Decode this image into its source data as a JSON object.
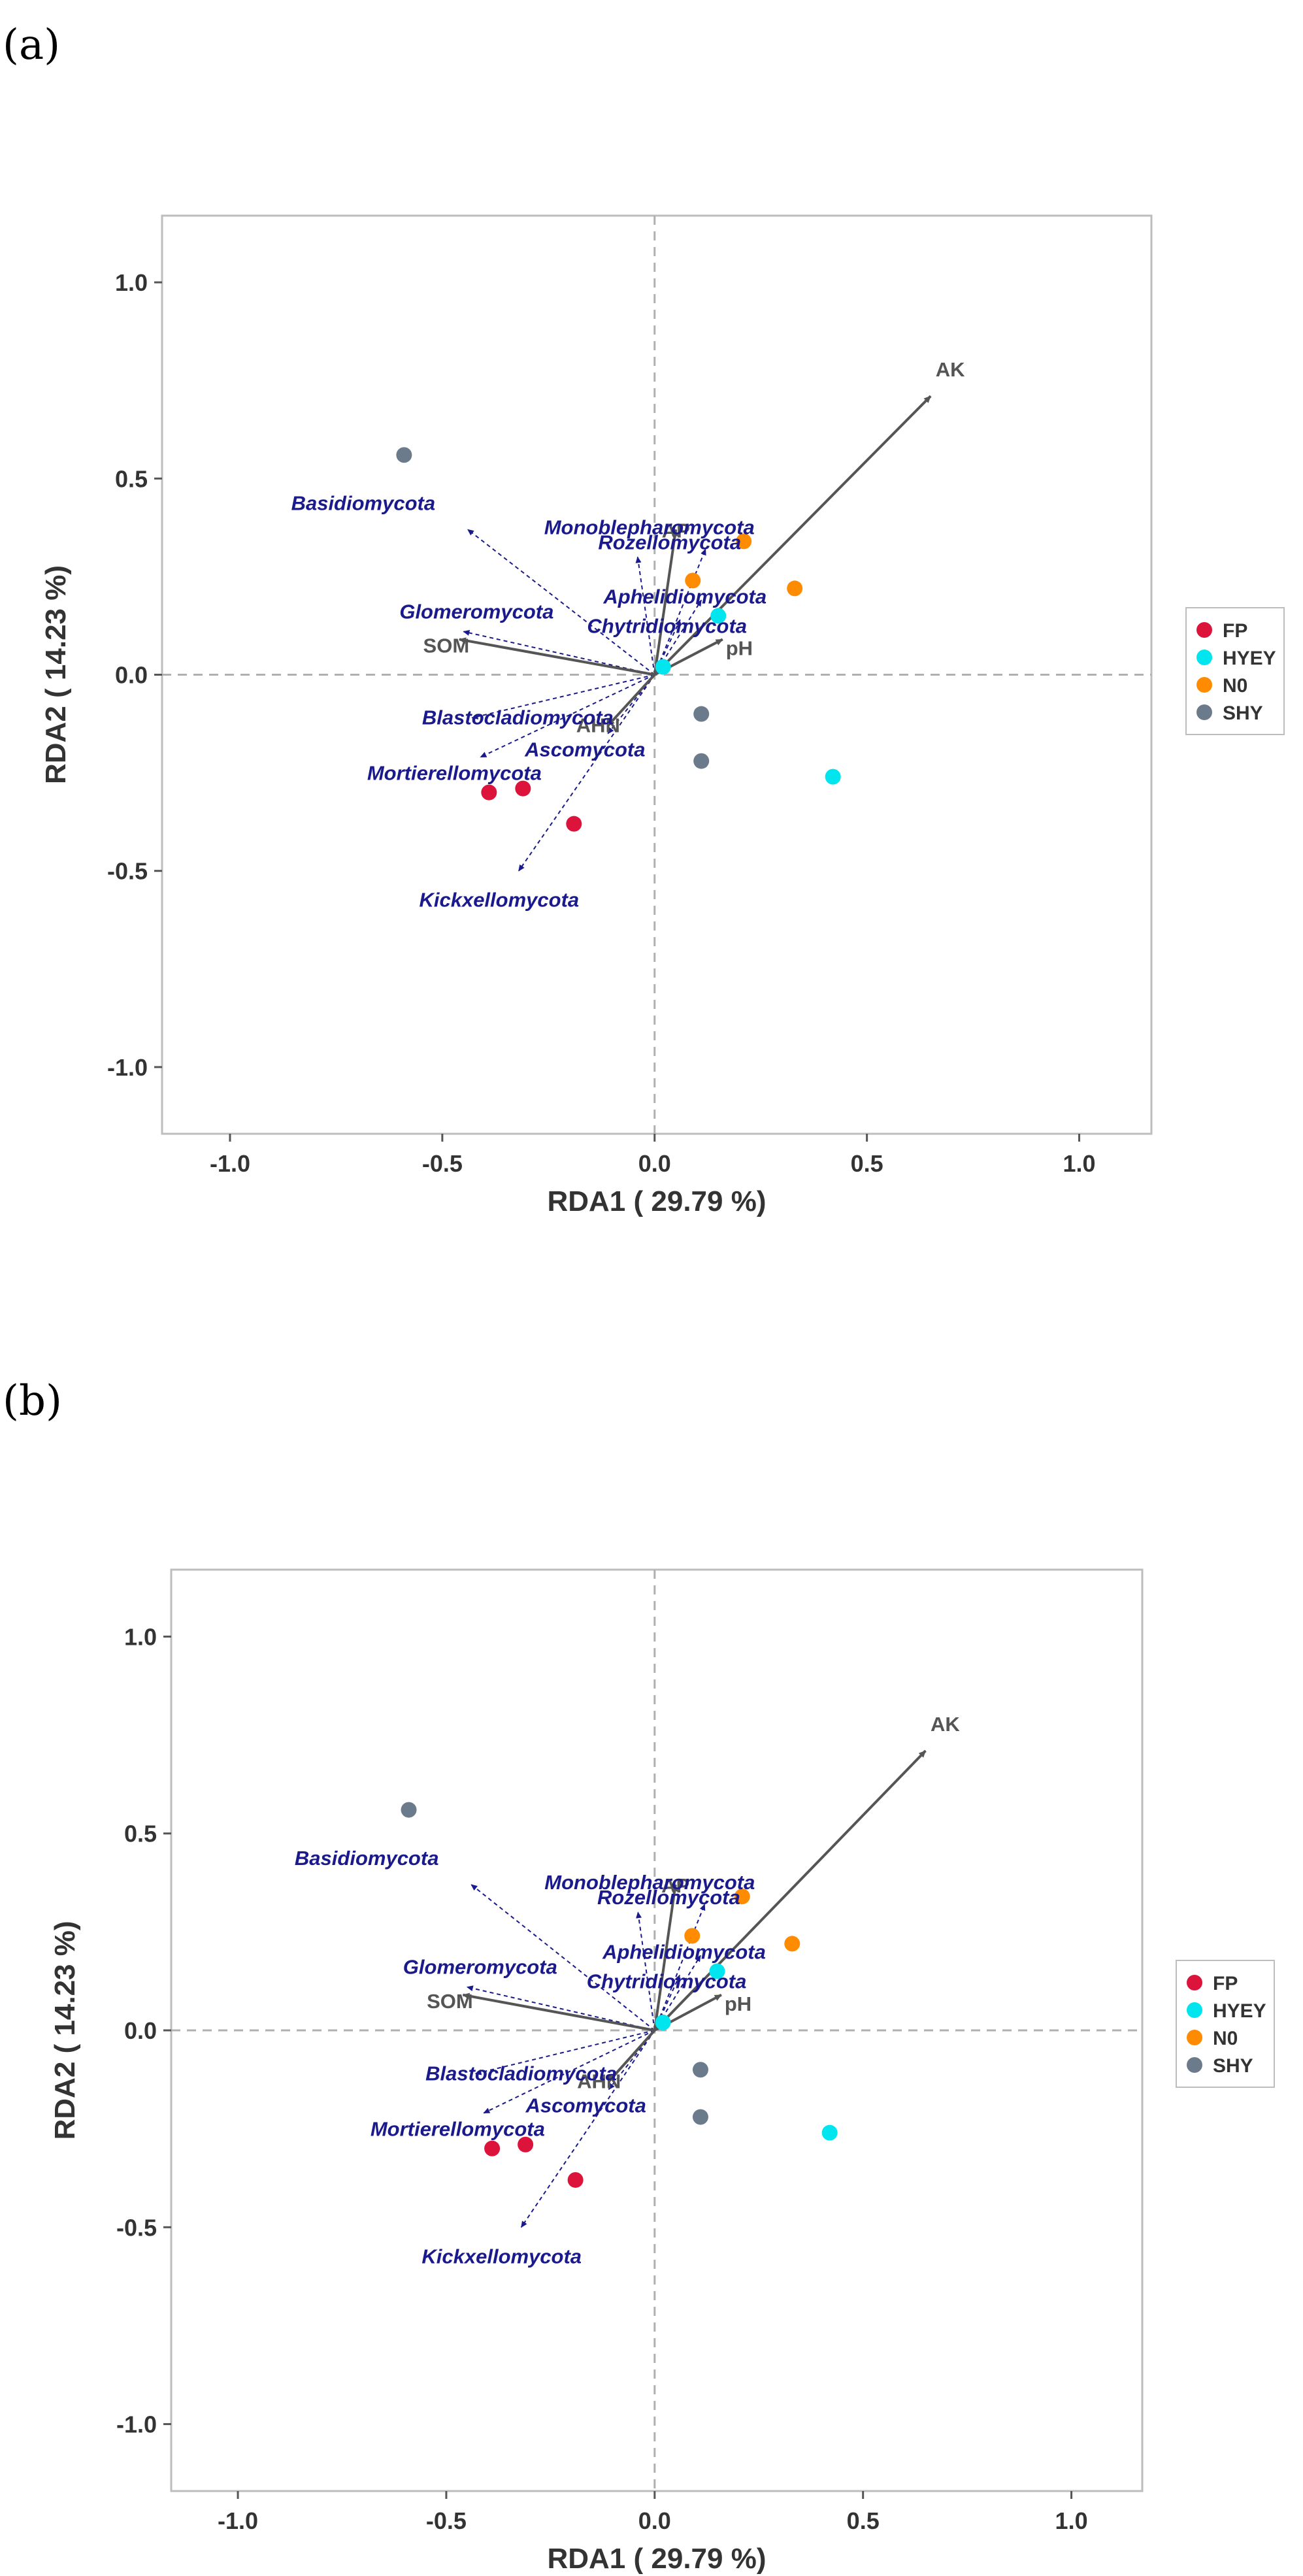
{
  "chart_data": [
    {
      "panel_label": "(a)",
      "type": "scatter",
      "subtype": "RDA biplot",
      "xlabel": "RDA1 ( 29.79 %)",
      "ylabel": "RDA2 ( 14.23 %)",
      "xlim": [
        -1.16,
        1.17
      ],
      "ylim": [
        -1.17,
        1.17
      ],
      "xticks": [
        -1.0,
        -0.5,
        0.0,
        0.5,
        1.0
      ],
      "yticks": [
        -1.0,
        -0.5,
        0.0,
        0.5,
        1.0
      ],
      "xtick_labels": [
        "-1.0",
        "-0.5",
        "0.0",
        "0.5",
        "1.0"
      ],
      "ytick_labels": [
        "-1.0",
        "-0.5",
        "0.0",
        "0.5",
        "1.0"
      ],
      "reference_lines": {
        "x": 0,
        "y": 0,
        "style": "dashed"
      },
      "legend": {
        "placement": "right",
        "entries": [
          {
            "name": "FP",
            "color": "#dc143c"
          },
          {
            "name": "HYEY",
            "color": "#00e5ee"
          },
          {
            "name": "N0",
            "color": "#ff8c00"
          },
          {
            "name": "SHY",
            "color": "#6c7b8b"
          }
        ]
      },
      "samples": [
        {
          "group": "FP",
          "x": -0.39,
          "y": -0.3
        },
        {
          "group": "FP",
          "x": -0.31,
          "y": -0.29
        },
        {
          "group": "FP",
          "x": -0.19,
          "y": -0.38
        },
        {
          "group": "HYEY",
          "x": 0.02,
          "y": 0.02
        },
        {
          "group": "HYEY",
          "x": 0.15,
          "y": 0.15
        },
        {
          "group": "HYEY",
          "x": 0.42,
          "y": -0.26
        },
        {
          "group": "N0",
          "x": 0.09,
          "y": 0.24
        },
        {
          "group": "N0",
          "x": 0.21,
          "y": 0.34
        },
        {
          "group": "N0",
          "x": 0.33,
          "y": 0.22
        },
        {
          "group": "SHY",
          "x": -0.59,
          "y": 0.56
        },
        {
          "group": "SHY",
          "x": 0.11,
          "y": -0.1
        },
        {
          "group": "SHY",
          "x": 0.11,
          "y": -0.22
        }
      ],
      "env_vectors": [
        {
          "name": "AK",
          "x": 0.65,
          "y": 0.71
        },
        {
          "name": "SOM",
          "x": -0.46,
          "y": 0.09
        },
        {
          "name": "AP",
          "x": 0.05,
          "y": 0.37
        },
        {
          "name": "pH",
          "x": 0.16,
          "y": 0.09
        },
        {
          "name": "AHN",
          "x": -0.11,
          "y": -0.13
        }
      ],
      "species_vectors": [
        {
          "name": "Basidiomycota",
          "x": -0.44,
          "y": 0.37
        },
        {
          "name": "Monoblepharomycota",
          "x": -0.04,
          "y": 0.3
        },
        {
          "name": "Rozellomycota",
          "x": 0.12,
          "y": 0.32
        },
        {
          "name": "Aphelidiomycota",
          "x": 0.11,
          "y": 0.19
        },
        {
          "name": "Chytridiomycota",
          "x": 0.06,
          "y": 0.14
        },
        {
          "name": "Glomeromycota",
          "x": -0.45,
          "y": 0.11
        },
        {
          "name": "Blastocladiomycota",
          "x": -0.43,
          "y": -0.11
        },
        {
          "name": "Ascomycota",
          "x": -0.11,
          "y": -0.15
        },
        {
          "name": "Mortierellomycota",
          "x": -0.41,
          "y": -0.21
        },
        {
          "name": "Kickxellomycota",
          "x": -0.32,
          "y": -0.5
        }
      ]
    },
    {
      "panel_label": "(b)",
      "type": "scatter",
      "subtype": "RDA biplot",
      "xlabel": "RDA1 ( 29.79 %)",
      "ylabel": "RDA2 ( 14.23 %)",
      "xlim": [
        -1.16,
        1.17
      ],
      "ylim": [
        -1.17,
        1.17
      ],
      "xticks": [
        -1.0,
        -0.5,
        0.0,
        0.5,
        1.0
      ],
      "yticks": [
        -1.0,
        -0.5,
        0.0,
        0.5,
        1.0
      ],
      "xtick_labels": [
        "-1.0",
        "-0.5",
        "0.0",
        "0.5",
        "1.0"
      ],
      "ytick_labels": [
        "-1.0",
        "-0.5",
        "0.0",
        "0.5",
        "1.0"
      ],
      "reference_lines": {
        "x": 0,
        "y": 0,
        "style": "dashed"
      },
      "legend": {
        "placement": "right",
        "entries": [
          {
            "name": "FP",
            "color": "#dc143c"
          },
          {
            "name": "HYEY",
            "color": "#00e5ee"
          },
          {
            "name": "N0",
            "color": "#ff8c00"
          },
          {
            "name": "SHY",
            "color": "#6c7b8b"
          }
        ]
      },
      "samples": [
        {
          "group": "FP",
          "x": -0.39,
          "y": -0.3
        },
        {
          "group": "FP",
          "x": -0.31,
          "y": -0.29
        },
        {
          "group": "FP",
          "x": -0.19,
          "y": -0.38
        },
        {
          "group": "HYEY",
          "x": 0.02,
          "y": 0.02
        },
        {
          "group": "HYEY",
          "x": 0.15,
          "y": 0.15
        },
        {
          "group": "HYEY",
          "x": 0.42,
          "y": -0.26
        },
        {
          "group": "N0",
          "x": 0.09,
          "y": 0.24
        },
        {
          "group": "N0",
          "x": 0.21,
          "y": 0.34
        },
        {
          "group": "N0",
          "x": 0.33,
          "y": 0.22
        },
        {
          "group": "SHY",
          "x": -0.59,
          "y": 0.56
        },
        {
          "group": "SHY",
          "x": 0.11,
          "y": -0.1
        },
        {
          "group": "SHY",
          "x": 0.11,
          "y": -0.22
        }
      ],
      "env_vectors": [
        {
          "name": "AK",
          "x": 0.65,
          "y": 0.71
        },
        {
          "name": "SOM",
          "x": -0.46,
          "y": 0.09
        },
        {
          "name": "AP",
          "x": 0.05,
          "y": 0.37
        },
        {
          "name": "pH",
          "x": 0.16,
          "y": 0.09
        },
        {
          "name": "AHN",
          "x": -0.11,
          "y": -0.13
        }
      ],
      "species_vectors": [
        {
          "name": "Basidiomycota",
          "x": -0.44,
          "y": 0.37
        },
        {
          "name": "Monoblepharomycota",
          "x": -0.04,
          "y": 0.3
        },
        {
          "name": "Rozellomycota",
          "x": 0.12,
          "y": 0.32
        },
        {
          "name": "Aphelidiomycota",
          "x": 0.11,
          "y": 0.19
        },
        {
          "name": "Chytridiomycota",
          "x": 0.06,
          "y": 0.14
        },
        {
          "name": "Glomeromycota",
          "x": -0.45,
          "y": 0.11
        },
        {
          "name": "Blastocladiomycota",
          "x": -0.43,
          "y": -0.11
        },
        {
          "name": "Ascomycota",
          "x": -0.11,
          "y": -0.15
        },
        {
          "name": "Mortierellomycota",
          "x": -0.41,
          "y": -0.21
        },
        {
          "name": "Kickxellomycota",
          "x": -0.32,
          "y": -0.5
        }
      ]
    }
  ]
}
